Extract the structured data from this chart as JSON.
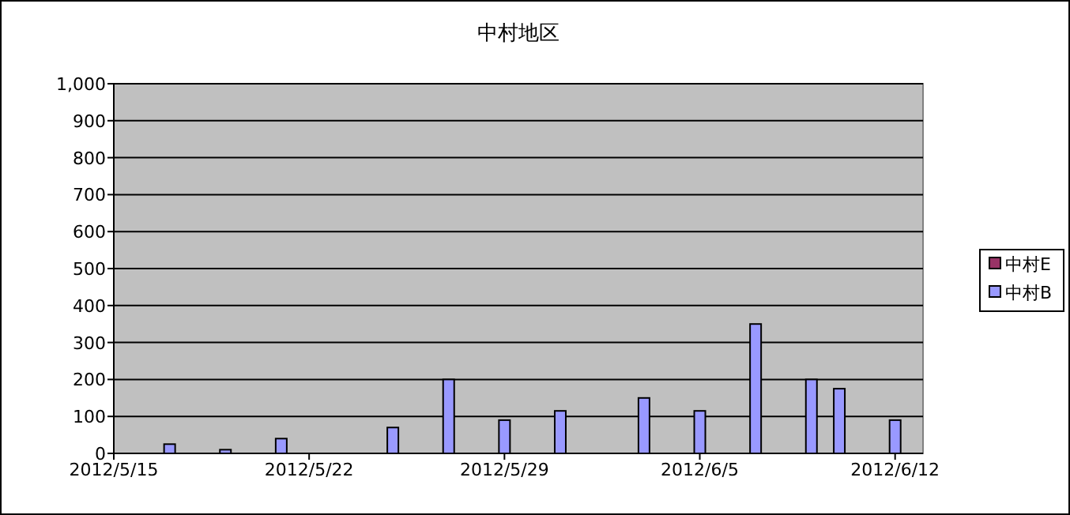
{
  "chart_data": {
    "type": "bar",
    "title": "中村地区",
    "x": [
      "2012-05-17",
      "2012-05-19",
      "2012-05-21",
      "2012-05-25",
      "2012-05-27",
      "2012-05-29",
      "2012-05-31",
      "2012-06-03",
      "2012-06-05",
      "2012-06-07",
      "2012-06-09",
      "2012-06-10",
      "2012-06-12"
    ],
    "series": [
      {
        "name": "中村E",
        "color": "#993366",
        "values": [
          null,
          null,
          null,
          null,
          null,
          null,
          null,
          null,
          null,
          null,
          null,
          null,
          null
        ]
      },
      {
        "name": "中村B",
        "color": "#9999ff",
        "values": [
          25,
          10,
          40,
          70,
          200,
          90,
          115,
          150,
          115,
          350,
          200,
          175,
          90
        ]
      }
    ],
    "xlim": [
      "2012-05-15",
      "2012-06-13"
    ],
    "xticks": [
      {
        "value": "2012-05-15",
        "label": "2012/5/15"
      },
      {
        "value": "2012-05-22",
        "label": "2012/5/22"
      },
      {
        "value": "2012-05-29",
        "label": "2012/5/29"
      },
      {
        "value": "2012-06-05",
        "label": "2012/6/5"
      },
      {
        "value": "2012-06-12",
        "label": "2012/6/12"
      }
    ],
    "ylim": [
      0,
      1000
    ],
    "yticks": [
      0,
      100,
      200,
      300,
      400,
      500,
      600,
      700,
      800,
      900,
      {
        "value": 1000,
        "label": "1,000"
      }
    ],
    "grid": "y",
    "legend": "right"
  }
}
